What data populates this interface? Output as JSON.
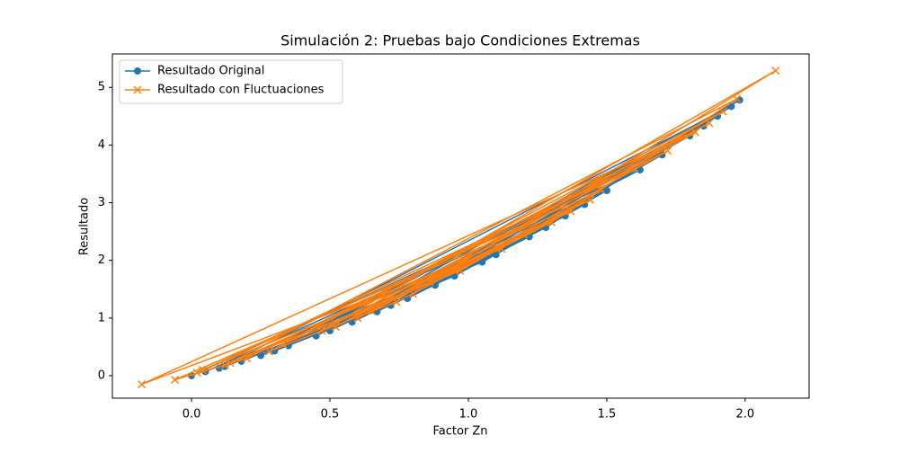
{
  "chart_data": {
    "type": "line",
    "title": "Simulación 2: Pruebas bajo Condiciones Extremas",
    "x_label": "Factor Zn",
    "y_label": "Resultado",
    "xlim": [
      -0.286,
      2.231
    ],
    "ylim": [
      -0.39,
      5.58
    ],
    "xticks": [
      {
        "value": 0,
        "label": "0.0"
      },
      {
        "value": 0.5,
        "label": "0.5"
      },
      {
        "value": 1,
        "label": "1.0"
      },
      {
        "value": 1.5,
        "label": "1.5"
      },
      {
        "value": 2,
        "label": "2.0"
      }
    ],
    "yticks": [
      0,
      1,
      2,
      3,
      4,
      5
    ],
    "legend": "upper-left",
    "series": [
      {
        "name": "Resultado Original",
        "color": "#1f77b4",
        "marker": "circle",
        "x": [
          0.0,
          1.62,
          0.45,
          1.98,
          0.88,
          0.12,
          1.35,
          0.67,
          1.8,
          0.25,
          1.1,
          0.05,
          1.5,
          0.95,
          0.35,
          1.9,
          0.58,
          1.22,
          0.78,
          1.7,
          0.18,
          1.05,
          1.42,
          0.5,
          1.85,
          0.3,
          0.72,
          1.28,
          1.95,
          0.1
        ],
        "values": [
          0,
          3.57,
          0.69,
          4.78,
          1.57,
          0.16,
          2.77,
          1.11,
          4.16,
          0.35,
          2.1,
          0.07,
          3.21,
          1.73,
          0.52,
          4.5,
          0.93,
          2.41,
          1.34,
          3.83,
          0.25,
          1.97,
          2.97,
          0.78,
          4.33,
          0.43,
          1.22,
          2.57,
          4.67,
          0.13
        ]
      },
      {
        "name": "Resultado con Fluctuaciones",
        "color": "#ff7f0e",
        "marker": "x",
        "x": [
          0.02,
          1.6,
          0.47,
          2.11,
          0.86,
          0.14,
          1.37,
          0.65,
          1.82,
          -0.18,
          1.12,
          0.04,
          1.48,
          0.97,
          0.33,
          1.92,
          0.6,
          1.2,
          0.8,
          1.72,
          0.2,
          -0.06,
          1.44,
          0.52,
          1.87,
          0.28,
          0.74,
          1.3,
          1.97,
          0.12
        ],
        "values": [
          0.05,
          3.6,
          0.78,
          5.29,
          1.62,
          0.22,
          2.85,
          1.12,
          4.22,
          -0.15,
          2.2,
          0.1,
          3.22,
          1.82,
          0.55,
          4.58,
          1.0,
          2.45,
          1.42,
          3.9,
          0.3,
          -0.07,
          3.05,
          0.85,
          4.38,
          0.42,
          1.28,
          2.66,
          4.8,
          0.18
        ]
      }
    ]
  }
}
